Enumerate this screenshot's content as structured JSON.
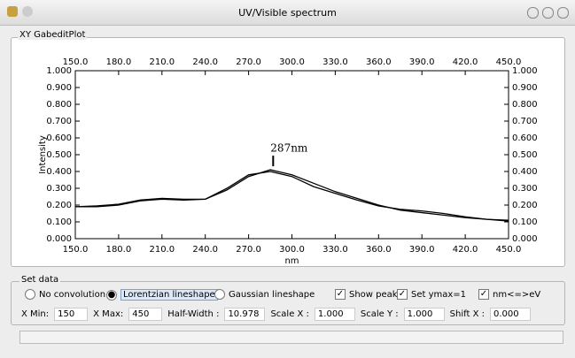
{
  "window": {
    "title": "UV/Visible spectrum",
    "frame_title": "XY GabeditPlot"
  },
  "plot": {
    "type": "line",
    "xlabel": "nm",
    "ylabel": "Intensity",
    "x": [
      150,
      165,
      180,
      195,
      210,
      225,
      240,
      255,
      270,
      285,
      300,
      315,
      330,
      345,
      360,
      375,
      390,
      405,
      420,
      435,
      450
    ],
    "series": [
      {
        "color": "#000000",
        "values": [
          0.19,
          0.195,
          0.205,
          0.23,
          0.24,
          0.235,
          0.235,
          0.29,
          0.37,
          0.41,
          0.38,
          0.33,
          0.28,
          0.24,
          0.2,
          0.17,
          0.155,
          0.14,
          0.125,
          0.115,
          0.11
        ]
      },
      {
        "color": "#000000",
        "values": [
          0.19,
          0.19,
          0.2,
          0.225,
          0.235,
          0.23,
          0.235,
          0.3,
          0.38,
          0.4,
          0.37,
          0.31,
          0.27,
          0.23,
          0.195,
          0.175,
          0.165,
          0.15,
          0.13,
          0.115,
          0.105
        ]
      }
    ],
    "xlim": [
      150,
      450
    ],
    "ylim": [
      0,
      1
    ],
    "xticks": [
      {
        "value": 150,
        "label": "150.0"
      },
      {
        "value": 180,
        "label": "180.0"
      },
      {
        "value": 210,
        "label": "210.0"
      },
      {
        "value": 240,
        "label": "240.0"
      },
      {
        "value": 270,
        "label": "270.0"
      },
      {
        "value": 300,
        "label": "300.0"
      },
      {
        "value": 330,
        "label": "330.0"
      },
      {
        "value": 360,
        "label": "360.0"
      },
      {
        "value": 390,
        "label": "390.0"
      },
      {
        "value": 420,
        "label": "420.0"
      },
      {
        "value": 450,
        "label": "450.0"
      }
    ],
    "yticks": [
      {
        "value": 0,
        "label": "0.000"
      },
      {
        "value": 0.1,
        "label": "0.100"
      },
      {
        "value": 0.2,
        "label": "0.200"
      },
      {
        "value": 0.3,
        "label": "0.300"
      },
      {
        "value": 0.4,
        "label": "0.400"
      },
      {
        "value": 0.5,
        "label": "0.500"
      },
      {
        "value": 0.6,
        "label": "0.600"
      },
      {
        "value": 0.7,
        "label": "0.700"
      },
      {
        "value": 0.8,
        "label": "0.800"
      },
      {
        "value": 0.9,
        "label": "0.900"
      },
      {
        "value": 1,
        "label": "1.000"
      }
    ],
    "annotation": {
      "text": "287nm",
      "x": 287,
      "y": 0.41
    }
  },
  "controls": {
    "title": "Set data",
    "options": [
      {
        "label": "No convolution",
        "kind": "radio",
        "checked": false
      },
      {
        "label": "Lorentzian lineshape",
        "kind": "radio",
        "checked": true
      },
      {
        "label": "Gaussian lineshape",
        "kind": "radio",
        "checked": false
      },
      {
        "label": "Show peaks",
        "kind": "check",
        "checked": true
      },
      {
        "label": "Set ymax=1",
        "kind": "check",
        "checked": true
      },
      {
        "label": "nm<=>eV",
        "kind": "check",
        "checked": true
      }
    ],
    "fields": [
      {
        "label": "X Min:",
        "value": "150"
      },
      {
        "label": "X Max:",
        "value": "450"
      },
      {
        "label": "Half-Width :",
        "value": "10.978"
      },
      {
        "label": "Scale X :",
        "value": "1.000"
      },
      {
        "label": "Scale Y :",
        "value": "1.000"
      },
      {
        "label": "Shift X :",
        "value": "0.000"
      }
    ]
  }
}
